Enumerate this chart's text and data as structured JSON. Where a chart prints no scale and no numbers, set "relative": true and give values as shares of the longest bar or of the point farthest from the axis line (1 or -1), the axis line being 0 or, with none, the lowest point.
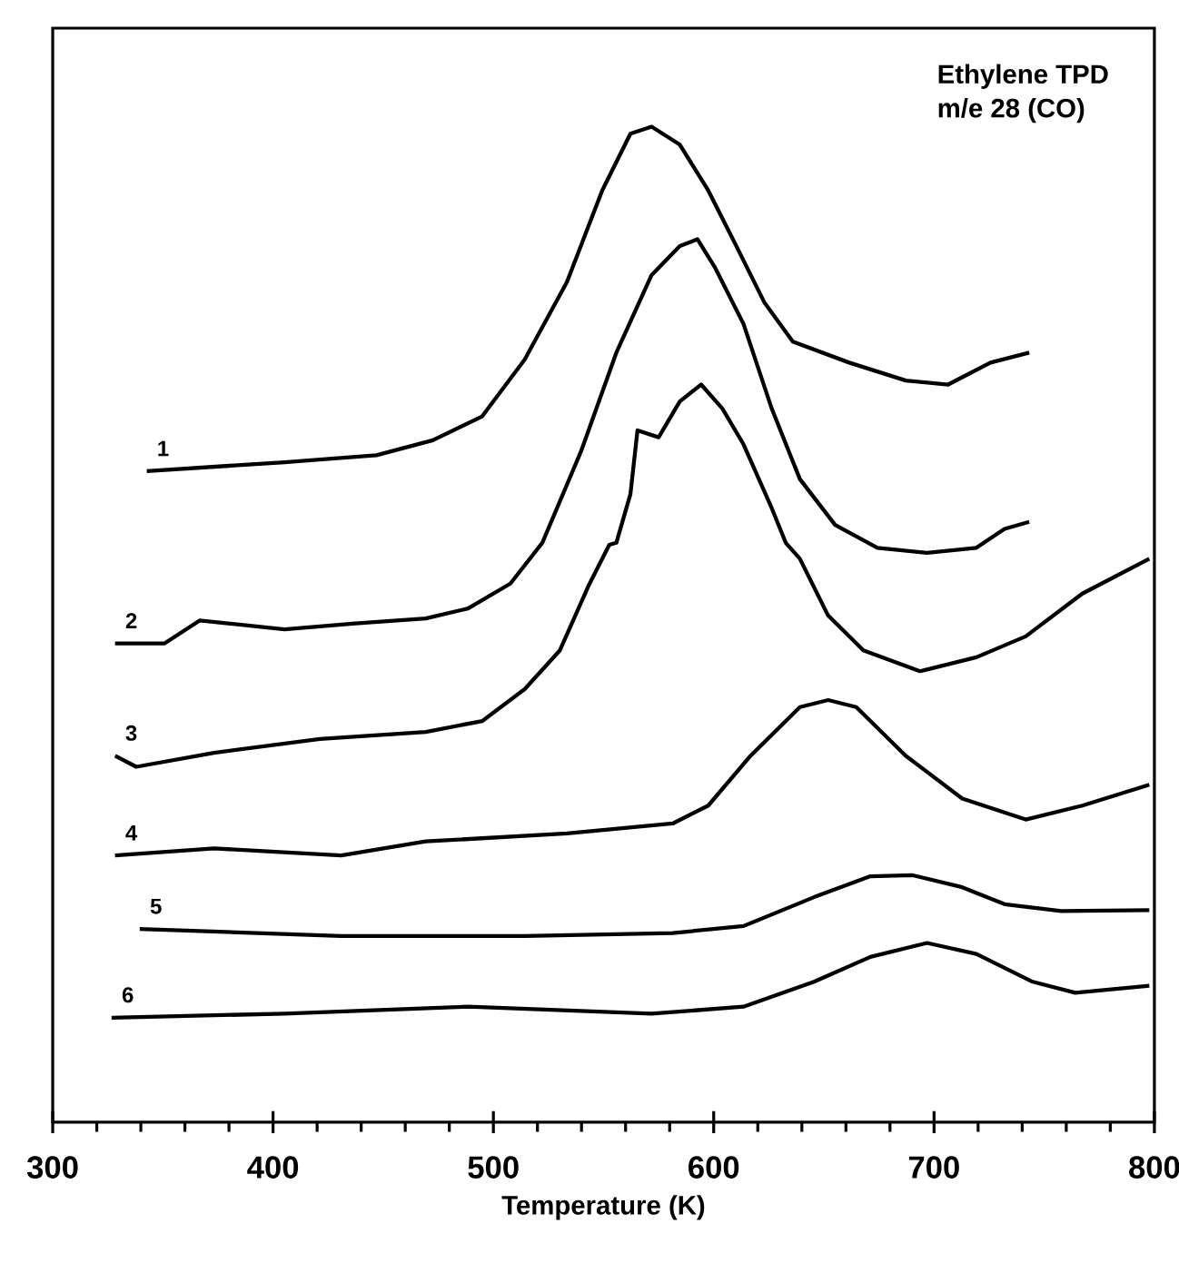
{
  "chart_data": {
    "type": "line",
    "title": "Ethylene TPD",
    "subtitle": "m/e 28 (CO)",
    "xlabel": "Temperature (K)",
    "relative": true,
    "xlim": [
      300,
      800
    ],
    "xticks": [
      300,
      400,
      500,
      600,
      700,
      800
    ],
    "marker": "none",
    "line_style": "solid",
    "series": [
      {
        "name": "1",
        "color": "#000000",
        "x": [
          342.7,
          405.2,
          446.9,
          472.5,
          494.9,
          514.2,
          533.4,
          549.4,
          562.2,
          571.8,
          584.6,
          597.5,
          610.3,
          623.1,
          635.9,
          661.5,
          687.2,
          706.4,
          725.6,
          743.2
        ],
        "values": [
          0.654,
          0.663,
          0.67,
          0.685,
          0.709,
          0.766,
          0.844,
          0.936,
          0.993,
          1.0,
          0.982,
          0.936,
          0.88,
          0.823,
          0.784,
          0.763,
          0.745,
          0.741,
          0.763,
          0.773
        ]
      },
      {
        "name": "2",
        "color": "#000000",
        "x": [
          328.3,
          350.8,
          366.8,
          405.2,
          437.3,
          469.3,
          488.5,
          507.7,
          522.2,
          539.8,
          555.8,
          571.8,
          584.6,
          592.6,
          600.7,
          613.5,
          626.3,
          639.1,
          655.1,
          674.3,
          696.8,
          719.2,
          732.0,
          743.2
        ],
        "values": [
          0.481,
          0.481,
          0.504,
          0.495,
          0.501,
          0.506,
          0.516,
          0.541,
          0.582,
          0.674,
          0.773,
          0.851,
          0.88,
          0.887,
          0.858,
          0.802,
          0.717,
          0.646,
          0.6,
          0.577,
          0.572,
          0.577,
          0.596,
          0.603
        ]
      },
      {
        "name": "3",
        "color": "#000000",
        "x": [
          328.3,
          337.9,
          373.2,
          421.2,
          469.3,
          495.0,
          514.2,
          530.2,
          543.0,
          552.6,
          555.8,
          562.2,
          565.4,
          575.0,
          584.6,
          594.3,
          603.9,
          613.5,
          626.3,
          632.7,
          639.1,
          651.9,
          667.9,
          693.6,
          719.2,
          741.6,
          767.3,
          797.7
        ],
        "values": [
          0.368,
          0.357,
          0.371,
          0.385,
          0.392,
          0.403,
          0.435,
          0.474,
          0.538,
          0.58,
          0.582,
          0.631,
          0.695,
          0.688,
          0.724,
          0.741,
          0.717,
          0.681,
          0.617,
          0.582,
          0.566,
          0.509,
          0.474,
          0.453,
          0.467,
          0.488,
          0.531,
          0.566
        ]
      },
      {
        "name": "4",
        "color": "#000000",
        "x": [
          328.3,
          373.2,
          430.9,
          469.3,
          533.4,
          581.4,
          597.5,
          616.7,
          639.1,
          651.9,
          664.7,
          687.2,
          712.8,
          741.6,
          767.3,
          797.7
        ],
        "values": [
          0.268,
          0.275,
          0.268,
          0.282,
          0.29,
          0.3,
          0.318,
          0.368,
          0.417,
          0.424,
          0.417,
          0.368,
          0.325,
          0.304,
          0.318,
          0.339
        ]
      },
      {
        "name": "5",
        "color": "#000000",
        "x": [
          339.5,
          430.9,
          514.2,
          581.4,
          613.5,
          645.5,
          671.1,
          690.4,
          712.8,
          732.0,
          757.7,
          797.7
        ],
        "values": [
          0.194,
          0.187,
          0.187,
          0.19,
          0.197,
          0.226,
          0.247,
          0.248,
          0.236,
          0.219,
          0.212,
          0.213
        ]
      },
      {
        "name": "6",
        "color": "#000000",
        "x": [
          326.7,
          405.2,
          488.5,
          571.8,
          613.5,
          645.5,
          671.1,
          696.8,
          719.2,
          744.8,
          764.1,
          797.7
        ],
        "values": [
          0.105,
          0.109,
          0.116,
          0.109,
          0.116,
          0.141,
          0.166,
          0.18,
          0.169,
          0.141,
          0.13,
          0.137
        ]
      }
    ]
  }
}
